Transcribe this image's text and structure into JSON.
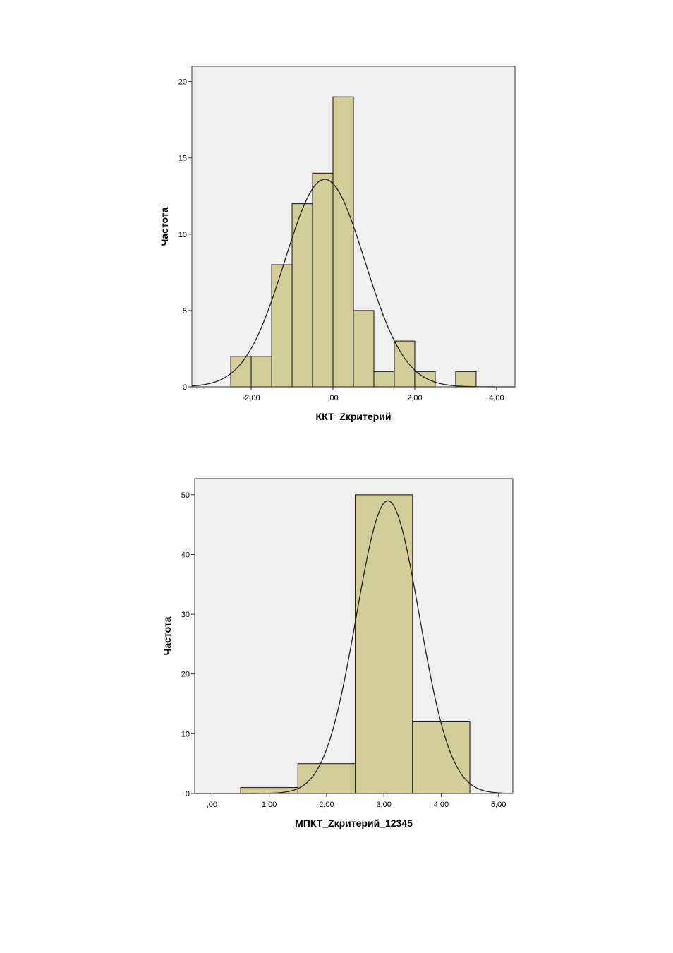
{
  "chart_data": [
    {
      "type": "histogram",
      "xlabel": "ККТ_Zкритерий",
      "ylabel": "Частота",
      "xlim": [
        -3.45,
        4.45
      ],
      "ylim": [
        0,
        21
      ],
      "x_ticks": [
        -2,
        0,
        2,
        4
      ],
      "x_tick_labels": [
        "-2,00",
        ",00",
        "2,00",
        "4,00"
      ],
      "y_ticks": [
        0,
        5,
        10,
        15,
        20
      ],
      "y_tick_labels": [
        "0",
        "5",
        "10",
        "15",
        "20"
      ],
      "bin_width": 0.5,
      "bins": [
        {
          "start": -2.5,
          "end": -2.0,
          "count": 2
        },
        {
          "start": -2.0,
          "end": -1.5,
          "count": 2
        },
        {
          "start": -1.5,
          "end": -1.0,
          "count": 8
        },
        {
          "start": -1.0,
          "end": -0.5,
          "count": 12
        },
        {
          "start": -0.5,
          "end": 0.0,
          "count": 14
        },
        {
          "start": 0.0,
          "end": 0.5,
          "count": 19
        },
        {
          "start": 0.5,
          "end": 1.0,
          "count": 5
        },
        {
          "start": 1.0,
          "end": 1.5,
          "count": 1
        },
        {
          "start": 1.5,
          "end": 2.0,
          "count": 3
        },
        {
          "start": 2.0,
          "end": 2.5,
          "count": 1
        },
        {
          "start": 3.0,
          "end": 3.5,
          "count": 1
        }
      ],
      "normal_curve": {
        "mean": -0.2,
        "sd": 0.98,
        "peak": 13.6
      },
      "grid": false,
      "colors": {
        "bar_fill": "#d3cd98",
        "plot_bg": "#f0f0f0",
        "stroke": "#222222"
      }
    },
    {
      "type": "histogram",
      "xlabel": "МПКТ_Zкритерий_12345",
      "ylabel": "Частота",
      "xlim": [
        -0.3,
        5.25
      ],
      "ylim": [
        0,
        52.7
      ],
      "x_ticks": [
        0,
        1,
        2,
        3,
        4,
        5
      ],
      "x_tick_labels": [
        ",00",
        "1,00",
        "2,00",
        "3,00",
        "4,00",
        "5,00"
      ],
      "y_ticks": [
        0,
        10,
        20,
        30,
        40,
        50
      ],
      "y_tick_labels": [
        "0",
        "10",
        "20",
        "30",
        "40",
        "50"
      ],
      "bin_width": 1.0,
      "bins": [
        {
          "start": 0.5,
          "end": 1.5,
          "count": 1
        },
        {
          "start": 1.5,
          "end": 2.5,
          "count": 5
        },
        {
          "start": 2.5,
          "end": 3.5,
          "count": 50
        },
        {
          "start": 3.5,
          "end": 4.5,
          "count": 12
        }
      ],
      "normal_curve": {
        "mean": 3.07,
        "sd": 0.55,
        "peak": 49
      },
      "grid": false,
      "colors": {
        "bar_fill": "#d3cd98",
        "plot_bg": "#f0f0f0",
        "stroke": "#222222"
      }
    }
  ]
}
